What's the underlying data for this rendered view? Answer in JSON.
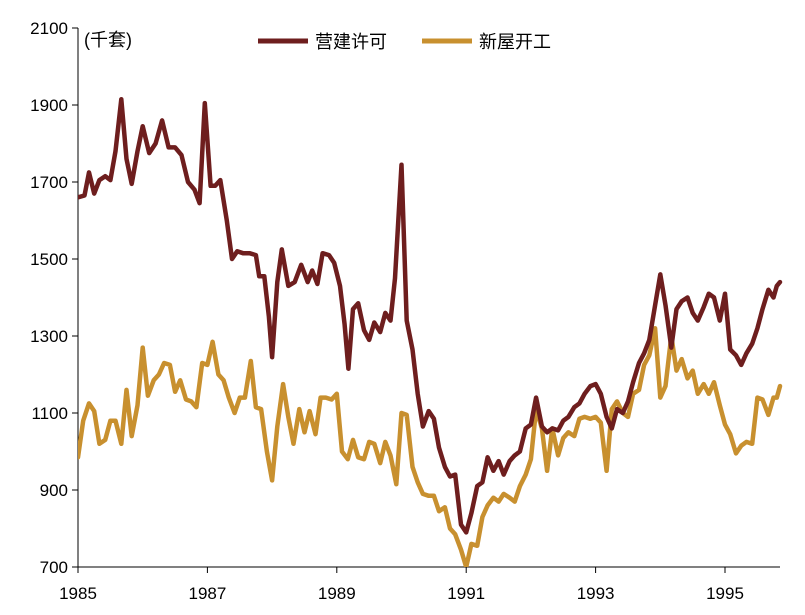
{
  "chart_data": {
    "type": "line",
    "unit_label": "(千套)",
    "ylim": [
      700,
      2100
    ],
    "yticks": [
      "2100",
      "1900",
      "1700",
      "1500",
      "1300",
      "1100",
      "900",
      "700"
    ],
    "xlim": [
      1985,
      1995.85
    ],
    "xticks": [
      "1985",
      "1987",
      "1989",
      "1991",
      "1993",
      "1995"
    ],
    "legend_position": "top-center",
    "series": [
      {
        "name": "营建许可",
        "color": "#6e1e1e",
        "points": [
          [
            1985.0,
            1660
          ],
          [
            1985.1,
            1665
          ],
          [
            1985.17,
            1725
          ],
          [
            1985.25,
            1670
          ],
          [
            1985.33,
            1705
          ],
          [
            1985.42,
            1715
          ],
          [
            1985.5,
            1705
          ],
          [
            1985.58,
            1780
          ],
          [
            1985.67,
            1915
          ],
          [
            1985.75,
            1760
          ],
          [
            1985.83,
            1695
          ],
          [
            1985.92,
            1780
          ],
          [
            1986.0,
            1845
          ],
          [
            1986.1,
            1775
          ],
          [
            1986.2,
            1800
          ],
          [
            1986.3,
            1860
          ],
          [
            1986.4,
            1790
          ],
          [
            1986.5,
            1790
          ],
          [
            1986.6,
            1770
          ],
          [
            1986.7,
            1700
          ],
          [
            1986.8,
            1680
          ],
          [
            1986.88,
            1645
          ],
          [
            1986.96,
            1905
          ],
          [
            1987.05,
            1690
          ],
          [
            1987.12,
            1690
          ],
          [
            1987.2,
            1705
          ],
          [
            1987.3,
            1600
          ],
          [
            1987.38,
            1500
          ],
          [
            1987.46,
            1520
          ],
          [
            1987.55,
            1515
          ],
          [
            1987.65,
            1515
          ],
          [
            1987.75,
            1510
          ],
          [
            1987.8,
            1455
          ],
          [
            1987.88,
            1455
          ],
          [
            1987.95,
            1350
          ],
          [
            1988.0,
            1245
          ],
          [
            1988.08,
            1440
          ],
          [
            1988.15,
            1525
          ],
          [
            1988.25,
            1430
          ],
          [
            1988.35,
            1440
          ],
          [
            1988.45,
            1485
          ],
          [
            1988.55,
            1440
          ],
          [
            1988.62,
            1470
          ],
          [
            1988.7,
            1435
          ],
          [
            1988.78,
            1515
          ],
          [
            1988.88,
            1510
          ],
          [
            1988.96,
            1490
          ],
          [
            1989.05,
            1430
          ],
          [
            1989.12,
            1330
          ],
          [
            1989.18,
            1215
          ],
          [
            1989.25,
            1370
          ],
          [
            1989.33,
            1385
          ],
          [
            1989.42,
            1315
          ],
          [
            1989.5,
            1290
          ],
          [
            1989.58,
            1335
          ],
          [
            1989.67,
            1310
          ],
          [
            1989.75,
            1360
          ],
          [
            1989.83,
            1340
          ],
          [
            1989.9,
            1450
          ],
          [
            1990.0,
            1745
          ],
          [
            1990.08,
            1340
          ],
          [
            1990.17,
            1265
          ],
          [
            1990.25,
            1150
          ],
          [
            1990.33,
            1065
          ],
          [
            1990.42,
            1105
          ],
          [
            1990.5,
            1085
          ],
          [
            1990.58,
            1010
          ],
          [
            1990.67,
            960
          ],
          [
            1990.75,
            935
          ],
          [
            1990.83,
            940
          ],
          [
            1990.92,
            810
          ],
          [
            1991.0,
            790
          ],
          [
            1991.08,
            840
          ],
          [
            1991.17,
            910
          ],
          [
            1991.25,
            920
          ],
          [
            1991.33,
            985
          ],
          [
            1991.42,
            950
          ],
          [
            1991.5,
            975
          ],
          [
            1991.58,
            940
          ],
          [
            1991.67,
            975
          ],
          [
            1991.75,
            990
          ],
          [
            1991.83,
            1000
          ],
          [
            1991.92,
            1060
          ],
          [
            1992.0,
            1070
          ],
          [
            1992.08,
            1140
          ],
          [
            1992.17,
            1065
          ],
          [
            1992.25,
            1050
          ],
          [
            1992.33,
            1060
          ],
          [
            1992.42,
            1055
          ],
          [
            1992.5,
            1080
          ],
          [
            1992.58,
            1090
          ],
          [
            1992.67,
            1115
          ],
          [
            1992.75,
            1125
          ],
          [
            1992.83,
            1150
          ],
          [
            1992.92,
            1170
          ],
          [
            1993.0,
            1175
          ],
          [
            1993.08,
            1150
          ],
          [
            1993.17,
            1090
          ],
          [
            1993.25,
            1060
          ],
          [
            1993.33,
            1110
          ],
          [
            1993.42,
            1100
          ],
          [
            1993.5,
            1130
          ],
          [
            1993.58,
            1180
          ],
          [
            1993.67,
            1230
          ],
          [
            1993.75,
            1255
          ],
          [
            1993.83,
            1290
          ],
          [
            1993.92,
            1380
          ],
          [
            1994.0,
            1460
          ],
          [
            1994.08,
            1380
          ],
          [
            1994.17,
            1270
          ],
          [
            1994.25,
            1370
          ],
          [
            1994.33,
            1390
          ],
          [
            1994.42,
            1400
          ],
          [
            1994.5,
            1360
          ],
          [
            1994.58,
            1340
          ],
          [
            1994.67,
            1375
          ],
          [
            1994.75,
            1410
          ],
          [
            1994.83,
            1400
          ],
          [
            1994.92,
            1340
          ],
          [
            1995.0,
            1410
          ],
          [
            1995.08,
            1265
          ],
          [
            1995.17,
            1250
          ],
          [
            1995.25,
            1225
          ],
          [
            1995.33,
            1255
          ],
          [
            1995.42,
            1280
          ],
          [
            1995.5,
            1320
          ],
          [
            1995.58,
            1370
          ],
          [
            1995.67,
            1420
          ],
          [
            1995.75,
            1400
          ],
          [
            1995.8,
            1430
          ],
          [
            1995.85,
            1440
          ]
        ]
      },
      {
        "name": "新屋开工",
        "color": "#c8902f",
        "points": [
          [
            1985.0,
            985
          ],
          [
            1985.08,
            1080
          ],
          [
            1985.17,
            1125
          ],
          [
            1985.25,
            1105
          ],
          [
            1985.33,
            1020
          ],
          [
            1985.42,
            1030
          ],
          [
            1985.5,
            1080
          ],
          [
            1985.58,
            1080
          ],
          [
            1985.67,
            1020
          ],
          [
            1985.75,
            1160
          ],
          [
            1985.83,
            1040
          ],
          [
            1985.92,
            1120
          ],
          [
            1986.0,
            1270
          ],
          [
            1986.08,
            1145
          ],
          [
            1986.17,
            1185
          ],
          [
            1986.25,
            1200
          ],
          [
            1986.33,
            1230
          ],
          [
            1986.42,
            1225
          ],
          [
            1986.5,
            1155
          ],
          [
            1986.58,
            1185
          ],
          [
            1986.67,
            1135
          ],
          [
            1986.75,
            1130
          ],
          [
            1986.83,
            1115
          ],
          [
            1986.92,
            1230
          ],
          [
            1987.0,
            1225
          ],
          [
            1987.08,
            1285
          ],
          [
            1987.17,
            1200
          ],
          [
            1987.25,
            1185
          ],
          [
            1987.33,
            1140
          ],
          [
            1987.42,
            1100
          ],
          [
            1987.5,
            1140
          ],
          [
            1987.58,
            1140
          ],
          [
            1987.67,
            1235
          ],
          [
            1987.75,
            1115
          ],
          [
            1987.83,
            1110
          ],
          [
            1987.92,
            1000
          ],
          [
            1988.0,
            925
          ],
          [
            1988.08,
            1065
          ],
          [
            1988.17,
            1175
          ],
          [
            1988.25,
            1090
          ],
          [
            1988.33,
            1020
          ],
          [
            1988.42,
            1110
          ],
          [
            1988.5,
            1050
          ],
          [
            1988.58,
            1105
          ],
          [
            1988.67,
            1045
          ],
          [
            1988.75,
            1140
          ],
          [
            1988.83,
            1140
          ],
          [
            1988.92,
            1135
          ],
          [
            1989.0,
            1150
          ],
          [
            1989.08,
            1000
          ],
          [
            1989.17,
            980
          ],
          [
            1989.25,
            1030
          ],
          [
            1989.33,
            985
          ],
          [
            1989.42,
            980
          ],
          [
            1989.5,
            1025
          ],
          [
            1989.58,
            1020
          ],
          [
            1989.67,
            970
          ],
          [
            1989.75,
            1025
          ],
          [
            1989.83,
            990
          ],
          [
            1989.92,
            915
          ],
          [
            1990.0,
            1100
          ],
          [
            1990.08,
            1095
          ],
          [
            1990.17,
            960
          ],
          [
            1990.25,
            920
          ],
          [
            1990.33,
            890
          ],
          [
            1990.42,
            885
          ],
          [
            1990.5,
            885
          ],
          [
            1990.58,
            845
          ],
          [
            1990.67,
            855
          ],
          [
            1990.75,
            800
          ],
          [
            1990.83,
            785
          ],
          [
            1990.92,
            745
          ],
          [
            1991.0,
            700
          ],
          [
            1991.08,
            760
          ],
          [
            1991.17,
            755
          ],
          [
            1991.25,
            830
          ],
          [
            1991.33,
            860
          ],
          [
            1991.42,
            880
          ],
          [
            1991.5,
            870
          ],
          [
            1991.58,
            890
          ],
          [
            1991.67,
            880
          ],
          [
            1991.75,
            870
          ],
          [
            1991.83,
            910
          ],
          [
            1991.92,
            940
          ],
          [
            1992.0,
            980
          ],
          [
            1992.08,
            1110
          ],
          [
            1992.17,
            1060
          ],
          [
            1992.25,
            950
          ],
          [
            1992.33,
            1060
          ],
          [
            1992.42,
            990
          ],
          [
            1992.5,
            1035
          ],
          [
            1992.58,
            1050
          ],
          [
            1992.67,
            1040
          ],
          [
            1992.75,
            1085
          ],
          [
            1992.83,
            1090
          ],
          [
            1992.92,
            1085
          ],
          [
            1993.0,
            1090
          ],
          [
            1993.08,
            1075
          ],
          [
            1993.17,
            950
          ],
          [
            1993.25,
            1110
          ],
          [
            1993.33,
            1130
          ],
          [
            1993.42,
            1100
          ],
          [
            1993.5,
            1090
          ],
          [
            1993.58,
            1150
          ],
          [
            1993.67,
            1160
          ],
          [
            1993.75,
            1225
          ],
          [
            1993.83,
            1250
          ],
          [
            1993.92,
            1320
          ],
          [
            1994.0,
            1140
          ],
          [
            1994.08,
            1170
          ],
          [
            1994.17,
            1300
          ],
          [
            1994.25,
            1210
          ],
          [
            1994.33,
            1240
          ],
          [
            1994.42,
            1190
          ],
          [
            1994.5,
            1210
          ],
          [
            1994.58,
            1150
          ],
          [
            1994.67,
            1175
          ],
          [
            1994.75,
            1150
          ],
          [
            1994.83,
            1180
          ],
          [
            1994.92,
            1120
          ],
          [
            1995.0,
            1070
          ],
          [
            1995.08,
            1045
          ],
          [
            1995.17,
            995
          ],
          [
            1995.25,
            1015
          ],
          [
            1995.33,
            1025
          ],
          [
            1995.42,
            1020
          ],
          [
            1995.5,
            1140
          ],
          [
            1995.58,
            1135
          ],
          [
            1995.67,
            1095
          ],
          [
            1995.75,
            1140
          ],
          [
            1995.8,
            1140
          ],
          [
            1995.85,
            1170
          ]
        ]
      }
    ]
  }
}
